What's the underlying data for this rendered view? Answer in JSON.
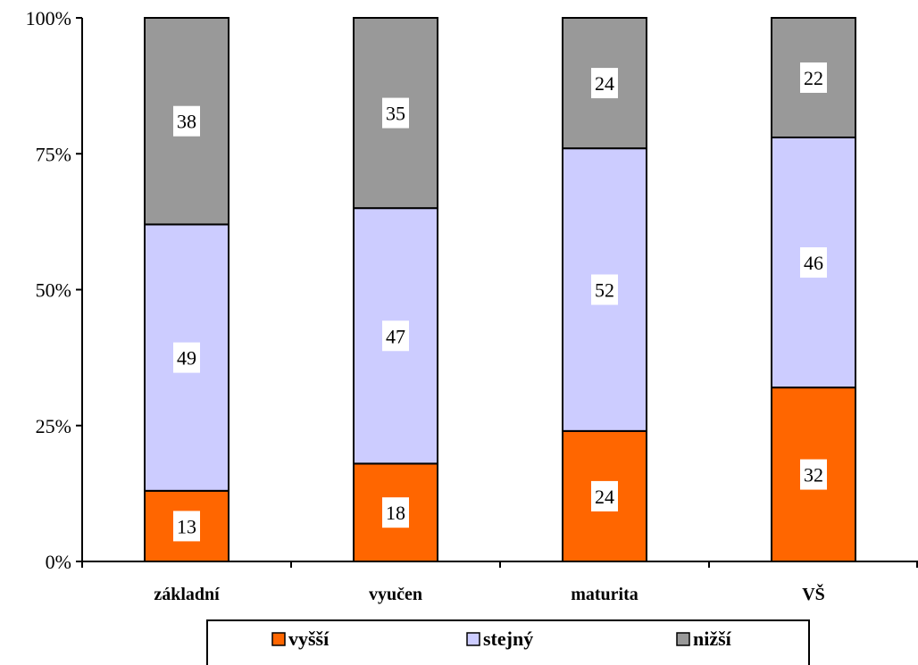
{
  "chart_data": {
    "type": "bar",
    "stacked": "percent",
    "categories": [
      "základní",
      "vyučen",
      "maturita",
      "VŠ"
    ],
    "series": [
      {
        "name": "vyšší",
        "values": [
          13,
          18,
          24,
          32
        ],
        "color": "#ff6600"
      },
      {
        "name": "stejný",
        "values": [
          49,
          47,
          52,
          46
        ],
        "color": "#ccccff"
      },
      {
        "name": "nižší",
        "values": [
          38,
          35,
          24,
          22
        ],
        "color": "#999999"
      }
    ],
    "title": "",
    "xlabel": "",
    "ylabel": "",
    "ylim": [
      0,
      100
    ],
    "yticks": [
      "0%",
      "25%",
      "50%",
      "75%",
      "100%"
    ],
    "grid": false,
    "legend_position": "bottom"
  }
}
